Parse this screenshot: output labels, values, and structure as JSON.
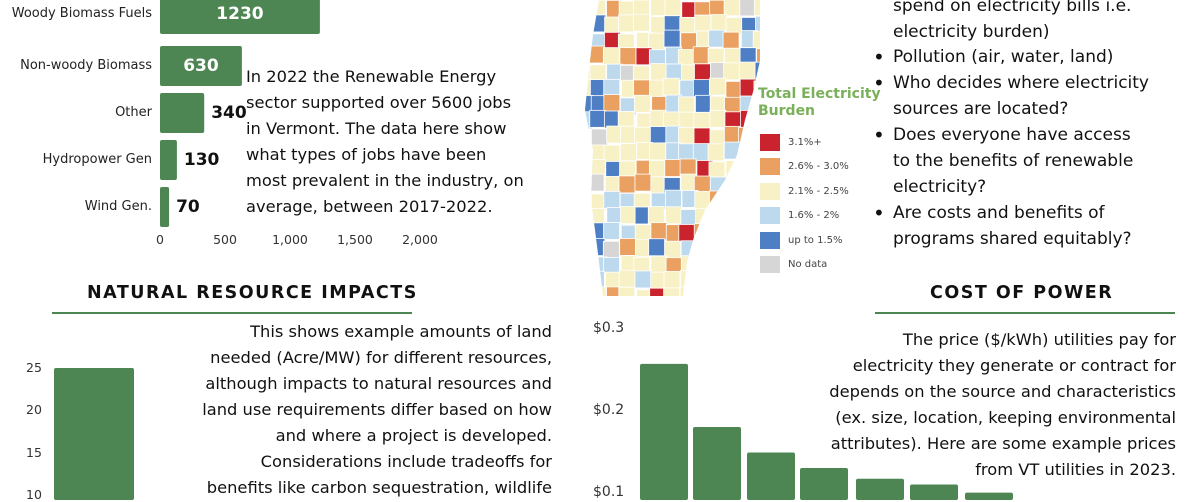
{
  "jobs_chart": {
    "type": "bar",
    "orientation": "horizontal",
    "categories": [
      "Woody Biomass Fuels",
      "Non-woody Biomass",
      "Other",
      "Hydropower Gen",
      "Wind Gen."
    ],
    "values": [
      1230,
      630,
      340,
      130,
      70
    ],
    "value_labels": [
      "1230",
      "630",
      "340",
      "130",
      "70"
    ],
    "xticks": [
      "0",
      "500",
      "1,000",
      "1,500",
      "2,000"
    ],
    "xlim": [
      0,
      2000
    ],
    "color": "#4d8653"
  },
  "jobs_text": [
    "In 2022 the Renewable Energy",
    "sector supported over 5600 jobs",
    "in Vermont. The data here show",
    "what types of jobs have been",
    "most prevalent in the industry, on",
    "average, between 2017-2022."
  ],
  "map": {
    "legend_title_lines": [
      "Total Electricity",
      "Burden"
    ],
    "legend": [
      {
        "label": "3.1%+",
        "color": "#c9242e"
      },
      {
        "label": "2.6% - 3.0%",
        "color": "#e9a060"
      },
      {
        "label": "2.1% - 2.5%",
        "color": "#f8f1c6"
      },
      {
        "label": "1.6% - 2%",
        "color": "#bcd9ee"
      },
      {
        "label": "up to 1.5%",
        "color": "#4e7fc4"
      },
      {
        "label": "No data",
        "color": "#d6d6d6"
      }
    ]
  },
  "concerns": {
    "partial_lines": [
      "spend on electricity bills i.e.",
      "electricity burden)"
    ],
    "items": [
      [
        "Pollution (air, water, land)"
      ],
      [
        "Who decides where electricity",
        "sources are located?"
      ],
      [
        "Does everyone have access",
        "to the benefits of renewable",
        "electricity?"
      ],
      [
        "Are costs and benefits of",
        "programs shared equitably?"
      ]
    ]
  },
  "natural_resource": {
    "heading": "NATURAL RESOURCE IMPACTS",
    "text": [
      "This shows example amounts of land",
      "needed (Acre/MW) for different resources,",
      "although impacts to natural resources and",
      "land use requirements differ based on how",
      "and where a project is developed.",
      "Considerations include tradeoffs for",
      "benefits like carbon sequestration, wildlife"
    ],
    "yticks": [
      "25",
      "20",
      "15",
      "10"
    ]
  },
  "land_chart": {
    "type": "bar",
    "values": [
      25
    ],
    "ylim": [
      0,
      27
    ],
    "color": "#4d8653"
  },
  "cost_of_power": {
    "heading": "COST OF POWER",
    "text": [
      "The price ($/kWh) utilities pay for",
      "electricity they generate or contract for",
      "depends on the source and characteristics",
      "(ex. size, location, keeping environmental",
      "attributes). Here are some example prices",
      "from VT utilities in 2023."
    ],
    "yticks": [
      "$0.3",
      "$0.2",
      "$0.1"
    ]
  },
  "price_chart": {
    "type": "bar",
    "values": [
      0.255,
      0.178,
      0.147,
      0.128,
      0.115,
      0.108,
      0.098
    ],
    "ylim": [
      0.0,
      0.3
    ],
    "color": "#4d8653"
  }
}
